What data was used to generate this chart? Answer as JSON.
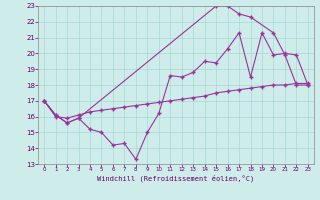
{
  "xlabel": "Windchill (Refroidissement éolien,°C)",
  "background_color": "#ceecea",
  "grid_color": "#a8d8d4",
  "line_color": "#993399",
  "xlim": [
    -0.5,
    23.5
  ],
  "ylim": [
    13,
    23
  ],
  "xticks": [
    0,
    1,
    2,
    3,
    4,
    5,
    6,
    7,
    8,
    9,
    10,
    11,
    12,
    13,
    14,
    15,
    16,
    17,
    18,
    19,
    20,
    21,
    22,
    23
  ],
  "yticks": [
    13,
    14,
    15,
    16,
    17,
    18,
    19,
    20,
    21,
    22,
    23
  ],
  "line1_x": [
    0,
    1,
    2,
    3,
    4,
    5,
    6,
    7,
    8,
    9,
    10,
    11,
    12,
    13,
    14,
    15,
    16,
    17,
    18,
    19,
    20,
    21,
    22,
    23
  ],
  "line1_y": [
    17,
    16.1,
    15.6,
    15.9,
    15.2,
    15.0,
    14.2,
    14.3,
    13.3,
    15.0,
    16.2,
    18.6,
    18.5,
    18.8,
    19.5,
    19.4,
    20.3,
    21.3,
    18.5,
    21.3,
    19.9,
    20.0,
    19.9,
    18.0
  ],
  "line2_x": [
    0,
    1,
    2,
    3,
    4,
    5,
    6,
    7,
    8,
    9,
    10,
    11,
    12,
    13,
    14,
    15,
    16,
    17,
    18,
    19,
    20,
    21,
    22,
    23
  ],
  "line2_y": [
    17,
    16.0,
    15.9,
    16.1,
    16.3,
    16.4,
    16.5,
    16.6,
    16.7,
    16.8,
    16.9,
    17.0,
    17.1,
    17.2,
    17.3,
    17.5,
    17.6,
    17.7,
    17.8,
    17.9,
    18.0,
    18.0,
    18.1,
    18.1
  ],
  "line3_x": [
    0,
    1,
    2,
    3,
    15,
    16,
    17,
    18,
    20,
    21,
    22,
    23
  ],
  "line3_y": [
    17,
    16.1,
    15.6,
    15.9,
    23.0,
    23.0,
    22.5,
    22.3,
    21.3,
    19.9,
    18.0,
    18.0
  ]
}
